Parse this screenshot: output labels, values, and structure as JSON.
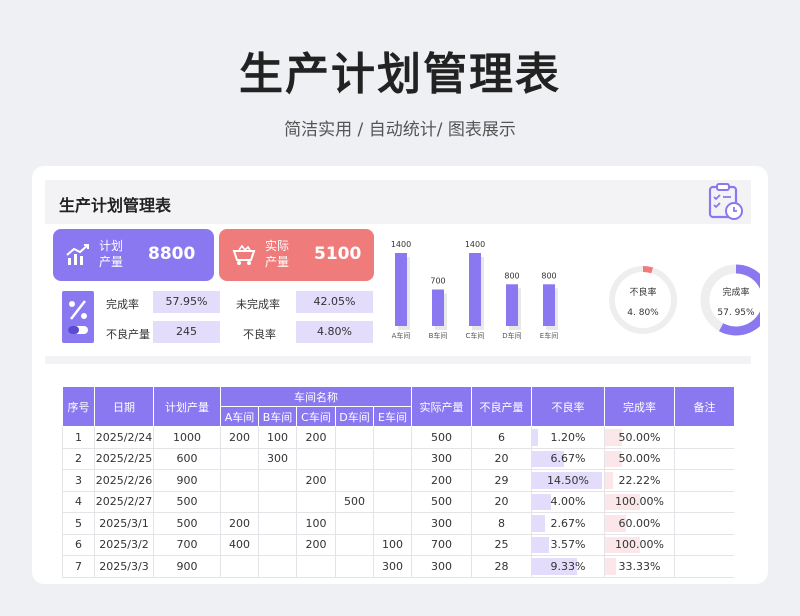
{
  "hero": {
    "title": "生产计划管理表",
    "subtitle": "简洁实用 / 自动统计/ 图表展示"
  },
  "panel": {
    "title": "生产计划管理表",
    "icon": "clipboard-clock-icon"
  },
  "kpi": {
    "plan": {
      "label": "计划产量",
      "value": "8800",
      "icon": "trend-chart-icon",
      "color": "#8a78f0"
    },
    "actual": {
      "label": "实际产量",
      "value": "5100",
      "icon": "cart-icon",
      "color": "#ef7b7b"
    }
  },
  "metrics": {
    "icon": "percent-icon",
    "completion_label": "完成率",
    "completion_value": "57.95%",
    "incomplete_label": "未完成率",
    "incomplete_value": "42.05%",
    "defect_qty_label": "不良产量",
    "defect_qty_value": "245",
    "defect_rate_label": "不良率",
    "defect_rate_value": "4.80%"
  },
  "chart_data": [
    {
      "type": "bar",
      "categories": [
        "A车间",
        "B车间",
        "C车间",
        "D车间",
        "E车间"
      ],
      "values": [
        1400,
        700,
        1400,
        800,
        800
      ],
      "value_labels": [
        "1400",
        "700",
        "1400",
        "800",
        "800"
      ],
      "ylim": [
        0,
        1400
      ],
      "title": "",
      "xlabel": "",
      "ylabel": "",
      "color": "#8a78f0"
    },
    {
      "type": "pie",
      "title": "不良率",
      "label": "4. 80%",
      "values": [
        4.8,
        95.2
      ],
      "colors": [
        "#ef7b7b",
        "#eeeeee"
      ]
    },
    {
      "type": "pie",
      "title": "完成率",
      "label": "57. 95%",
      "values": [
        57.95,
        42.05
      ],
      "colors": [
        "#8a78f0",
        "#eeeeee"
      ]
    }
  ],
  "table": {
    "headers": {
      "seq": "序号",
      "date": "日期",
      "plan": "计划产量",
      "workshop": "车间名称",
      "shops": [
        "A车间",
        "B车间",
        "C车间",
        "D车间",
        "E车间"
      ],
      "actual": "实际产量",
      "defect_qty": "不良产量",
      "defect_rate": "不良率",
      "completion": "完成率",
      "note": "备注"
    },
    "rows": [
      {
        "seq": "1",
        "date": "2025/2/24",
        "plan": "1000",
        "shops": [
          "200",
          "100",
          "200",
          "",
          ""
        ],
        "actual": "500",
        "defect_qty": "6",
        "defect_rate": "1.20%",
        "defect_rate_num": 1.2,
        "completion": "50.00%",
        "completion_num": 50.0,
        "note": ""
      },
      {
        "seq": "2",
        "date": "2025/2/25",
        "plan": "600",
        "shops": [
          "",
          "300",
          "",
          "",
          ""
        ],
        "actual": "300",
        "defect_qty": "20",
        "defect_rate": "6.67%",
        "defect_rate_num": 6.67,
        "completion": "50.00%",
        "completion_num": 50.0,
        "note": ""
      },
      {
        "seq": "3",
        "date": "2025/2/26",
        "plan": "900",
        "shops": [
          "",
          "",
          "200",
          "",
          ""
        ],
        "actual": "200",
        "defect_qty": "29",
        "defect_rate": "14.50%",
        "defect_rate_num": 14.5,
        "completion": "22.22%",
        "completion_num": 22.22,
        "note": ""
      },
      {
        "seq": "4",
        "date": "2025/2/27",
        "plan": "500",
        "shops": [
          "",
          "",
          "",
          "500",
          ""
        ],
        "actual": "500",
        "defect_qty": "20",
        "defect_rate": "4.00%",
        "defect_rate_num": 4.0,
        "completion": "100.00%",
        "completion_num": 100.0,
        "note": ""
      },
      {
        "seq": "5",
        "date": "2025/3/1",
        "plan": "500",
        "shops": [
          "200",
          "",
          "100",
          "",
          ""
        ],
        "actual": "300",
        "defect_qty": "8",
        "defect_rate": "2.67%",
        "defect_rate_num": 2.67,
        "completion": "60.00%",
        "completion_num": 60.0,
        "note": ""
      },
      {
        "seq": "6",
        "date": "2025/3/2",
        "plan": "700",
        "shops": [
          "400",
          "",
          "200",
          "",
          "100"
        ],
        "actual": "700",
        "defect_qty": "25",
        "defect_rate": "3.57%",
        "defect_rate_num": 3.57,
        "completion": "100.00%",
        "completion_num": 100.0,
        "note": ""
      },
      {
        "seq": "7",
        "date": "2025/3/3",
        "plan": "900",
        "shops": [
          "",
          "",
          "",
          "",
          "300"
        ],
        "actual": "300",
        "defect_qty": "28",
        "defect_rate": "9.33%",
        "defect_rate_num": 9.33,
        "completion": "33.33%",
        "completion_num": 33.33,
        "note": ""
      }
    ]
  }
}
